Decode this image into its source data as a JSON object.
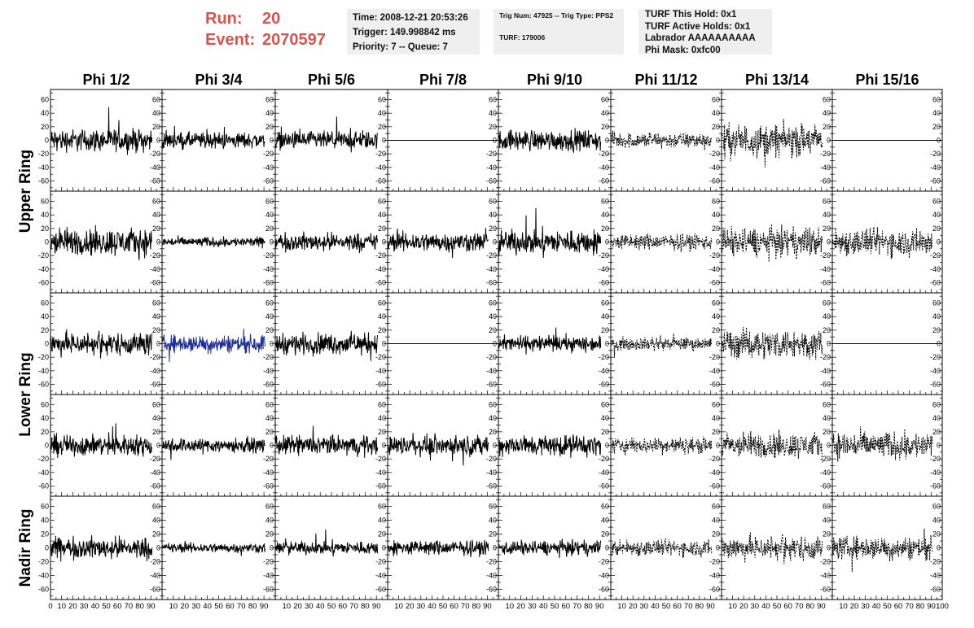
{
  "header": {
    "run_label": "Run:",
    "run_value": "20",
    "event_label": "Event:",
    "event_value": "2070597",
    "box1": {
      "time": "Time: 2008-12-21 20:53:26",
      "trigger": "Trigger: 149.998842 ms",
      "priority": "Priority: 7 -- Queue: 7"
    },
    "box2": {
      "trig": "Trig Num: 47925 -- Trig Type: PPS2",
      "turf": "TURF: 179006"
    },
    "box3": {
      "hold": "TURF This Hold: 0x1",
      "active": "TURF Active Holds: 0x1",
      "labrador": "Labrador AAAAAAAAAA",
      "mask": "Phi Mask: 0xfc00"
    }
  },
  "chart_data": {
    "type": "line",
    "columns": [
      "Phi 1/2",
      "Phi 3/4",
      "Phi 5/6",
      "Phi 7/8",
      "Phi 9/10",
      "Phi 11/12",
      "Phi 13/14",
      "Phi 15/16"
    ],
    "ring_labels": [
      {
        "label": "Upper Ring",
        "rows": [
          0,
          1
        ]
      },
      {
        "label": "Lower Ring",
        "rows": [
          2,
          3
        ]
      },
      {
        "label": "Nadir Ring",
        "rows": [
          4
        ]
      }
    ],
    "xlim": [
      0,
      100
    ],
    "ylim": [
      -75,
      75
    ],
    "x_ticks": [
      0,
      10,
      20,
      30,
      40,
      50,
      60,
      70,
      80,
      90,
      100
    ],
    "y_ticks": [
      -60,
      -40,
      -20,
      0,
      20,
      40,
      60
    ],
    "colors": {
      "normal": "#000000",
      "highlight": "#1f2f9a"
    },
    "panels": [
      [
        {
          "style": "solid",
          "amp": 14
        },
        {
          "style": "solid",
          "amp": 10
        },
        {
          "style": "solid",
          "amp": 11
        },
        {
          "style": "flat",
          "amp": 0
        },
        {
          "style": "solid",
          "amp": 13
        },
        {
          "style": "dashed",
          "amp": 10
        },
        {
          "style": "dashed",
          "amp": 20
        },
        {
          "style": "flat",
          "amp": 0
        }
      ],
      [
        {
          "style": "solid",
          "amp": 17
        },
        {
          "style": "solid",
          "amp": 6
        },
        {
          "style": "solid",
          "amp": 11
        },
        {
          "style": "solid",
          "amp": 12
        },
        {
          "style": "solid",
          "amp": 15
        },
        {
          "style": "dashed",
          "amp": 10
        },
        {
          "style": "dashed",
          "amp": 18
        },
        {
          "style": "dashed",
          "amp": 17
        }
      ],
      [
        {
          "style": "solid",
          "amp": 14
        },
        {
          "style": "highlight",
          "amp": 11
        },
        {
          "style": "solid",
          "amp": 13
        },
        {
          "style": "flat",
          "amp": 0
        },
        {
          "style": "solid",
          "amp": 10
        },
        {
          "style": "dashed",
          "amp": 8
        },
        {
          "style": "dashed",
          "amp": 18
        },
        {
          "style": "flat",
          "amp": 0
        }
      ],
      [
        {
          "style": "solid",
          "amp": 13
        },
        {
          "style": "solid",
          "amp": 9
        },
        {
          "style": "solid",
          "amp": 12
        },
        {
          "style": "solid",
          "amp": 12
        },
        {
          "style": "solid",
          "amp": 13
        },
        {
          "style": "dashed",
          "amp": 10
        },
        {
          "style": "dashed",
          "amp": 16
        },
        {
          "style": "dashed",
          "amp": 17
        }
      ],
      [
        {
          "style": "solid",
          "amp": 13
        },
        {
          "style": "solid",
          "amp": 6
        },
        {
          "style": "solid",
          "amp": 8
        },
        {
          "style": "solid",
          "amp": 9
        },
        {
          "style": "solid",
          "amp": 9
        },
        {
          "style": "dashed",
          "amp": 10
        },
        {
          "style": "dashed",
          "amp": 15
        },
        {
          "style": "dashed",
          "amp": 14
        }
      ]
    ]
  }
}
